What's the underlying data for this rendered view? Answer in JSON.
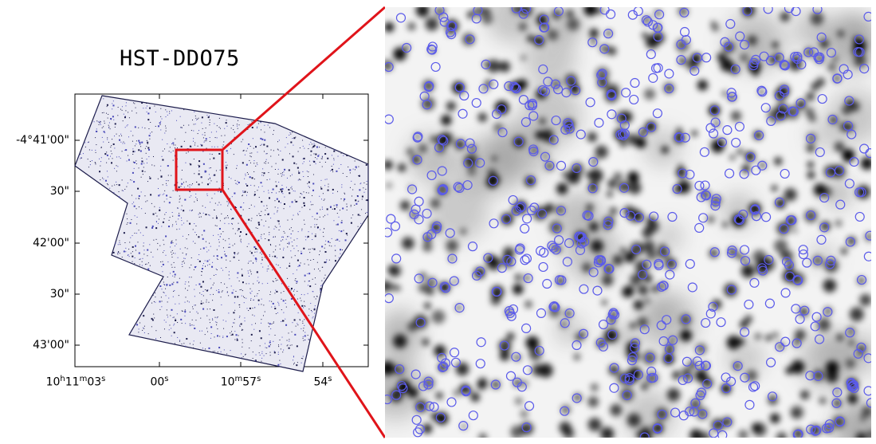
{
  "title": "HST-DDO75",
  "dec_labels": [
    "-4°41'00\"",
    "30\"",
    "42'00\"",
    "30\"",
    "43'00\""
  ],
  "ra_labels": [
    {
      "main": "10",
      "h": "h",
      "mid": "11",
      "m": "m",
      "end": "03",
      "s": "s"
    },
    {
      "main": "00",
      "s": "s"
    },
    {
      "main": "10",
      "m": "m",
      "mid": "57",
      "s": "s"
    },
    {
      "main": "54",
      "s": "s"
    }
  ],
  "colors": {
    "zoom_box": "#e0141a",
    "source_circle": "#5b5bea",
    "field_ink": "#1b1b4a",
    "star": "#000000"
  }
}
